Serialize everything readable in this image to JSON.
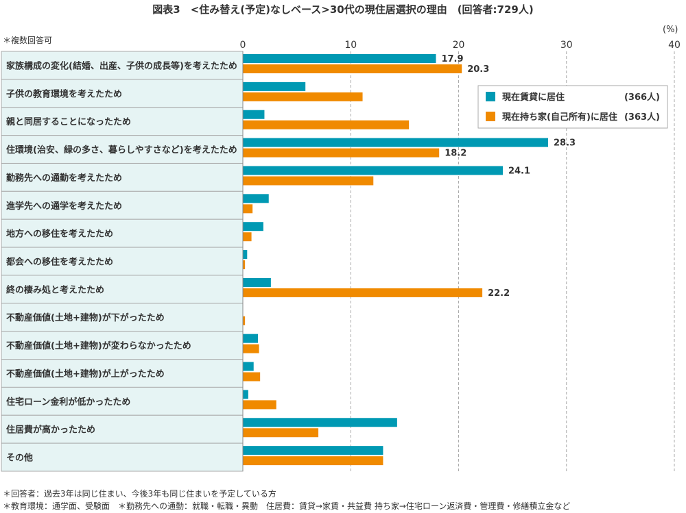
{
  "chart_data": {
    "type": "bar",
    "orientation": "horizontal",
    "title": "図表3　<住み替え(予定)なしベース>30代の現住居選択の理由　(回答者:729人)",
    "note": "＊複数回答可",
    "unit": "(%)",
    "xlim": [
      0,
      40
    ],
    "ticks": [
      0,
      10,
      20,
      30,
      40
    ],
    "grid": "vertical dashed",
    "legend_position": "top-right",
    "categories": [
      "家族構成の変化(結婚、出産、子供の成長等)を考えたため",
      "子供の教育環境を考えたため",
      "親と同居することになったため",
      "住環境(治安、緑の多さ、暮らしやすさなど)を考えたため",
      "勤務先への通勤を考えたため",
      "進学先への通学を考えたため",
      "地方への移住を考えたため",
      "都会への移住を考えたため",
      "終の棲み処と考えたため",
      "不動産価値(土地+建物)が下がったため",
      "不動産価値(土地+建物)が変わらなかったため",
      "不動産価値(土地+建物)が上がったため",
      "住宅ローン金利が低かったため",
      "住居費が高かったため",
      "その他"
    ],
    "series": [
      {
        "name": "現在賃貸に居住",
        "count": "(366人)",
        "color": "#0099b3",
        "values": [
          17.9,
          5.8,
          2.0,
          28.3,
          24.1,
          2.4,
          1.9,
          0.4,
          2.6,
          0,
          1.4,
          1.0,
          0.5,
          14.3,
          13.0
        ],
        "labels": [
          "17.9",
          "",
          "",
          "28.3",
          "24.1",
          "",
          "",
          "",
          "",
          "",
          "",
          "",
          "",
          "",
          ""
        ]
      },
      {
        "name": "現在持ち家(自己所有)に居住",
        "count": "(363人)",
        "color": "#f08a00",
        "values": [
          20.3,
          11.1,
          15.4,
          18.2,
          12.1,
          0.9,
          0.8,
          0.2,
          22.2,
          0.2,
          1.5,
          1.6,
          3.1,
          7.0,
          13.0
        ],
        "labels": [
          "20.3",
          "",
          "",
          "18.2",
          "",
          "",
          "",
          "",
          "22.2",
          "",
          "",
          "",
          "",
          "",
          ""
        ]
      }
    ]
  },
  "footnotes": [
    "＊回答者：過去3年は同じ住まい、今後3年も同じ住まいを予定している方",
    "＊教育環境：通学面、受験面　＊勤務先への通勤：就職・転職・異動　住居費：賃貸→家賃・共益費 持ち家→住宅ローン返済費・管理費・修繕積立金など"
  ]
}
